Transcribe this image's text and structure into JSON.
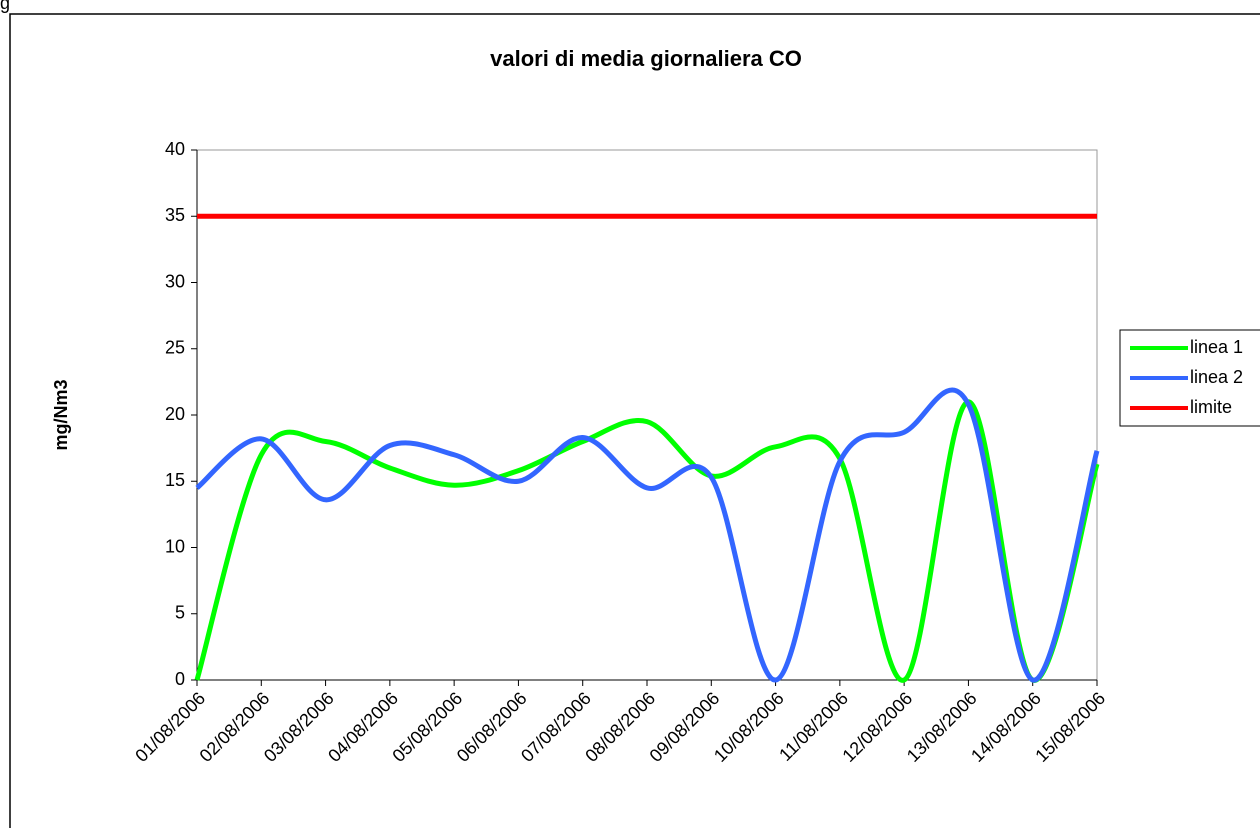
{
  "caption": "g",
  "chart_data": {
    "type": "line",
    "title": "valori di media giornaliera  CO",
    "y_label": "mg/Nm3",
    "categories": [
      "01/08/2006",
      "02/08/2006",
      "03/08/2006",
      "04/08/2006",
      "05/08/2006",
      "06/08/2006",
      "07/08/2006",
      "08/08/2006",
      "09/08/2006",
      "10/08/2006",
      "11/08/2006",
      "12/08/2006",
      "13/08/2006",
      "14/08/2006",
      "15/08/2006"
    ],
    "series": [
      {
        "name": "linea 1",
        "color": "#00ff00",
        "values": [
          0,
          17,
          18,
          16,
          14.7,
          15.8,
          18,
          19.5,
          15.4,
          17.6,
          16.7,
          0,
          21,
          0,
          16.3
        ]
      },
      {
        "name": "linea 2",
        "color": "#3366ff",
        "values": [
          14.5,
          18.2,
          13.6,
          17.7,
          17,
          15,
          18.3,
          14.5,
          15.3,
          0,
          16.5,
          18.7,
          20.8,
          0,
          17.3
        ]
      },
      {
        "name": "limite",
        "color": "#ff0000",
        "values": [
          35,
          35,
          35,
          35,
          35,
          35,
          35,
          35,
          35,
          35,
          35,
          35,
          35,
          35,
          35
        ]
      }
    ],
    "smooth": true,
    "ylim": [
      0,
      40
    ],
    "yticks": [
      0,
      5,
      10,
      15,
      20,
      25,
      30,
      35,
      40
    ],
    "grid": false,
    "legend": "right"
  }
}
